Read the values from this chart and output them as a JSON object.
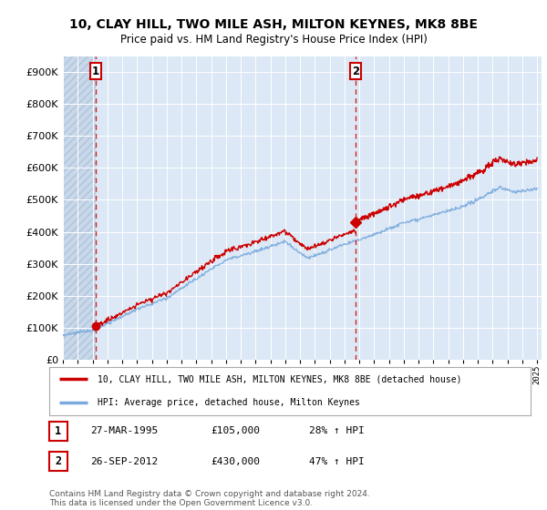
{
  "title": "10, CLAY HILL, TWO MILE ASH, MILTON KEYNES, MK8 8BE",
  "subtitle": "Price paid vs. HM Land Registry's House Price Index (HPI)",
  "ylim": [
    0,
    950000
  ],
  "yticks": [
    0,
    100000,
    200000,
    300000,
    400000,
    500000,
    600000,
    700000,
    800000,
    900000
  ],
  "ytick_labels": [
    "£0",
    "£100K",
    "£200K",
    "£300K",
    "£400K",
    "£500K",
    "£600K",
    "£700K",
    "£800K",
    "£900K"
  ],
  "sale1_date": 1995.23,
  "sale1_price": 105000,
  "sale2_date": 2012.74,
  "sale2_price": 430000,
  "property_color": "#cc0000",
  "hpi_color": "#7aaadd",
  "legend_property": "10, CLAY HILL, TWO MILE ASH, MILTON KEYNES, MK8 8BE (detached house)",
  "legend_hpi": "HPI: Average price, detached house, Milton Keynes",
  "table_row1": [
    "1",
    "27-MAR-1995",
    "£105,000",
    "28% ↑ HPI"
  ],
  "table_row2": [
    "2",
    "26-SEP-2012",
    "£430,000",
    "47% ↑ HPI"
  ],
  "footnote": "Contains HM Land Registry data © Crown copyright and database right 2024.\nThis data is licensed under the Open Government Licence v3.0.",
  "background_color": "#dce8f5",
  "hatch_area_color": "#c8d8ea"
}
